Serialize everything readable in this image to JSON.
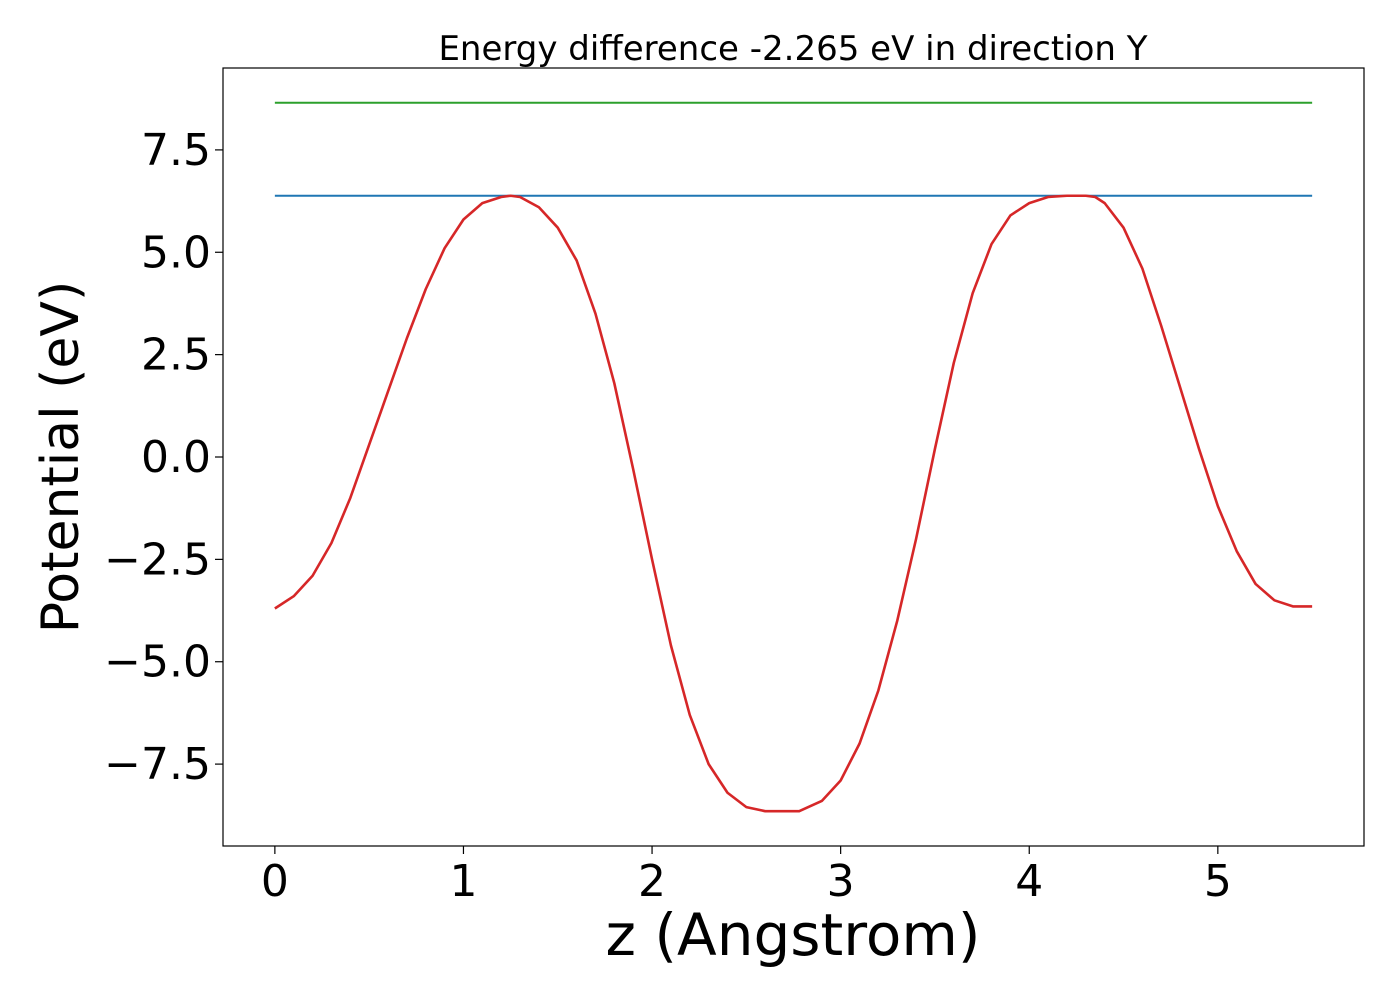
{
  "chart_data": {
    "type": "line",
    "title": "Energy difference -2.265 eV in direction Y",
    "xlabel": "z (Angstrom)",
    "ylabel": "Potential (eV)",
    "xlim": [
      -0.275,
      5.775
    ],
    "ylim": [
      -9.5,
      9.5
    ],
    "xticks": [
      0,
      1,
      2,
      3,
      4,
      5
    ],
    "xtick_labels": [
      "0",
      "1",
      "2",
      "3",
      "4",
      "5"
    ],
    "yticks": [
      -7.5,
      -5.0,
      -2.5,
      0.0,
      2.5,
      5.0,
      7.5
    ],
    "ytick_labels": [
      "−7.5",
      "−5.0",
      "−2.5",
      "0.0",
      "2.5",
      "5.0",
      "7.5"
    ],
    "grid": false,
    "series": [
      {
        "color": "#d62728",
        "x": [
          0.0,
          0.1,
          0.2,
          0.3,
          0.4,
          0.5,
          0.6,
          0.7,
          0.8,
          0.9,
          1.0,
          1.1,
          1.2,
          1.25,
          1.3,
          1.4,
          1.5,
          1.6,
          1.7,
          1.8,
          1.9,
          2.0,
          2.1,
          2.2,
          2.3,
          2.4,
          2.5,
          2.6,
          2.7,
          2.78,
          2.9,
          3.0,
          3.1,
          3.2,
          3.3,
          3.4,
          3.5,
          3.6,
          3.7,
          3.8,
          3.9,
          4.0,
          4.1,
          4.2,
          4.3,
          4.35,
          4.4,
          4.5,
          4.6,
          4.7,
          4.8,
          4.9,
          5.0,
          5.1,
          5.2,
          5.3,
          5.4,
          5.5
        ],
        "y": [
          -3.7,
          -3.4,
          -2.9,
          -2.1,
          -1.0,
          0.3,
          1.6,
          2.9,
          4.1,
          5.1,
          5.8,
          6.2,
          6.35,
          6.38,
          6.35,
          6.1,
          5.6,
          4.8,
          3.5,
          1.8,
          -0.3,
          -2.5,
          -4.6,
          -6.3,
          -7.5,
          -8.2,
          -8.55,
          -8.65,
          -8.65,
          -8.65,
          -8.4,
          -7.9,
          -7.0,
          -5.7,
          -4.0,
          -2.0,
          0.2,
          2.3,
          4.0,
          5.2,
          5.9,
          6.2,
          6.35,
          6.38,
          6.38,
          6.35,
          6.2,
          5.6,
          4.6,
          3.2,
          1.7,
          0.2,
          -1.2,
          -2.3,
          -3.1,
          -3.5,
          -3.65,
          -3.65
        ]
      },
      {
        "color": "#1f77b4",
        "x": [
          0.0,
          5.5
        ],
        "y": [
          6.38,
          6.38
        ]
      },
      {
        "color": "#2ca02c",
        "x": [
          0.0,
          5.5
        ],
        "y": [
          8.65,
          8.65
        ]
      }
    ]
  }
}
